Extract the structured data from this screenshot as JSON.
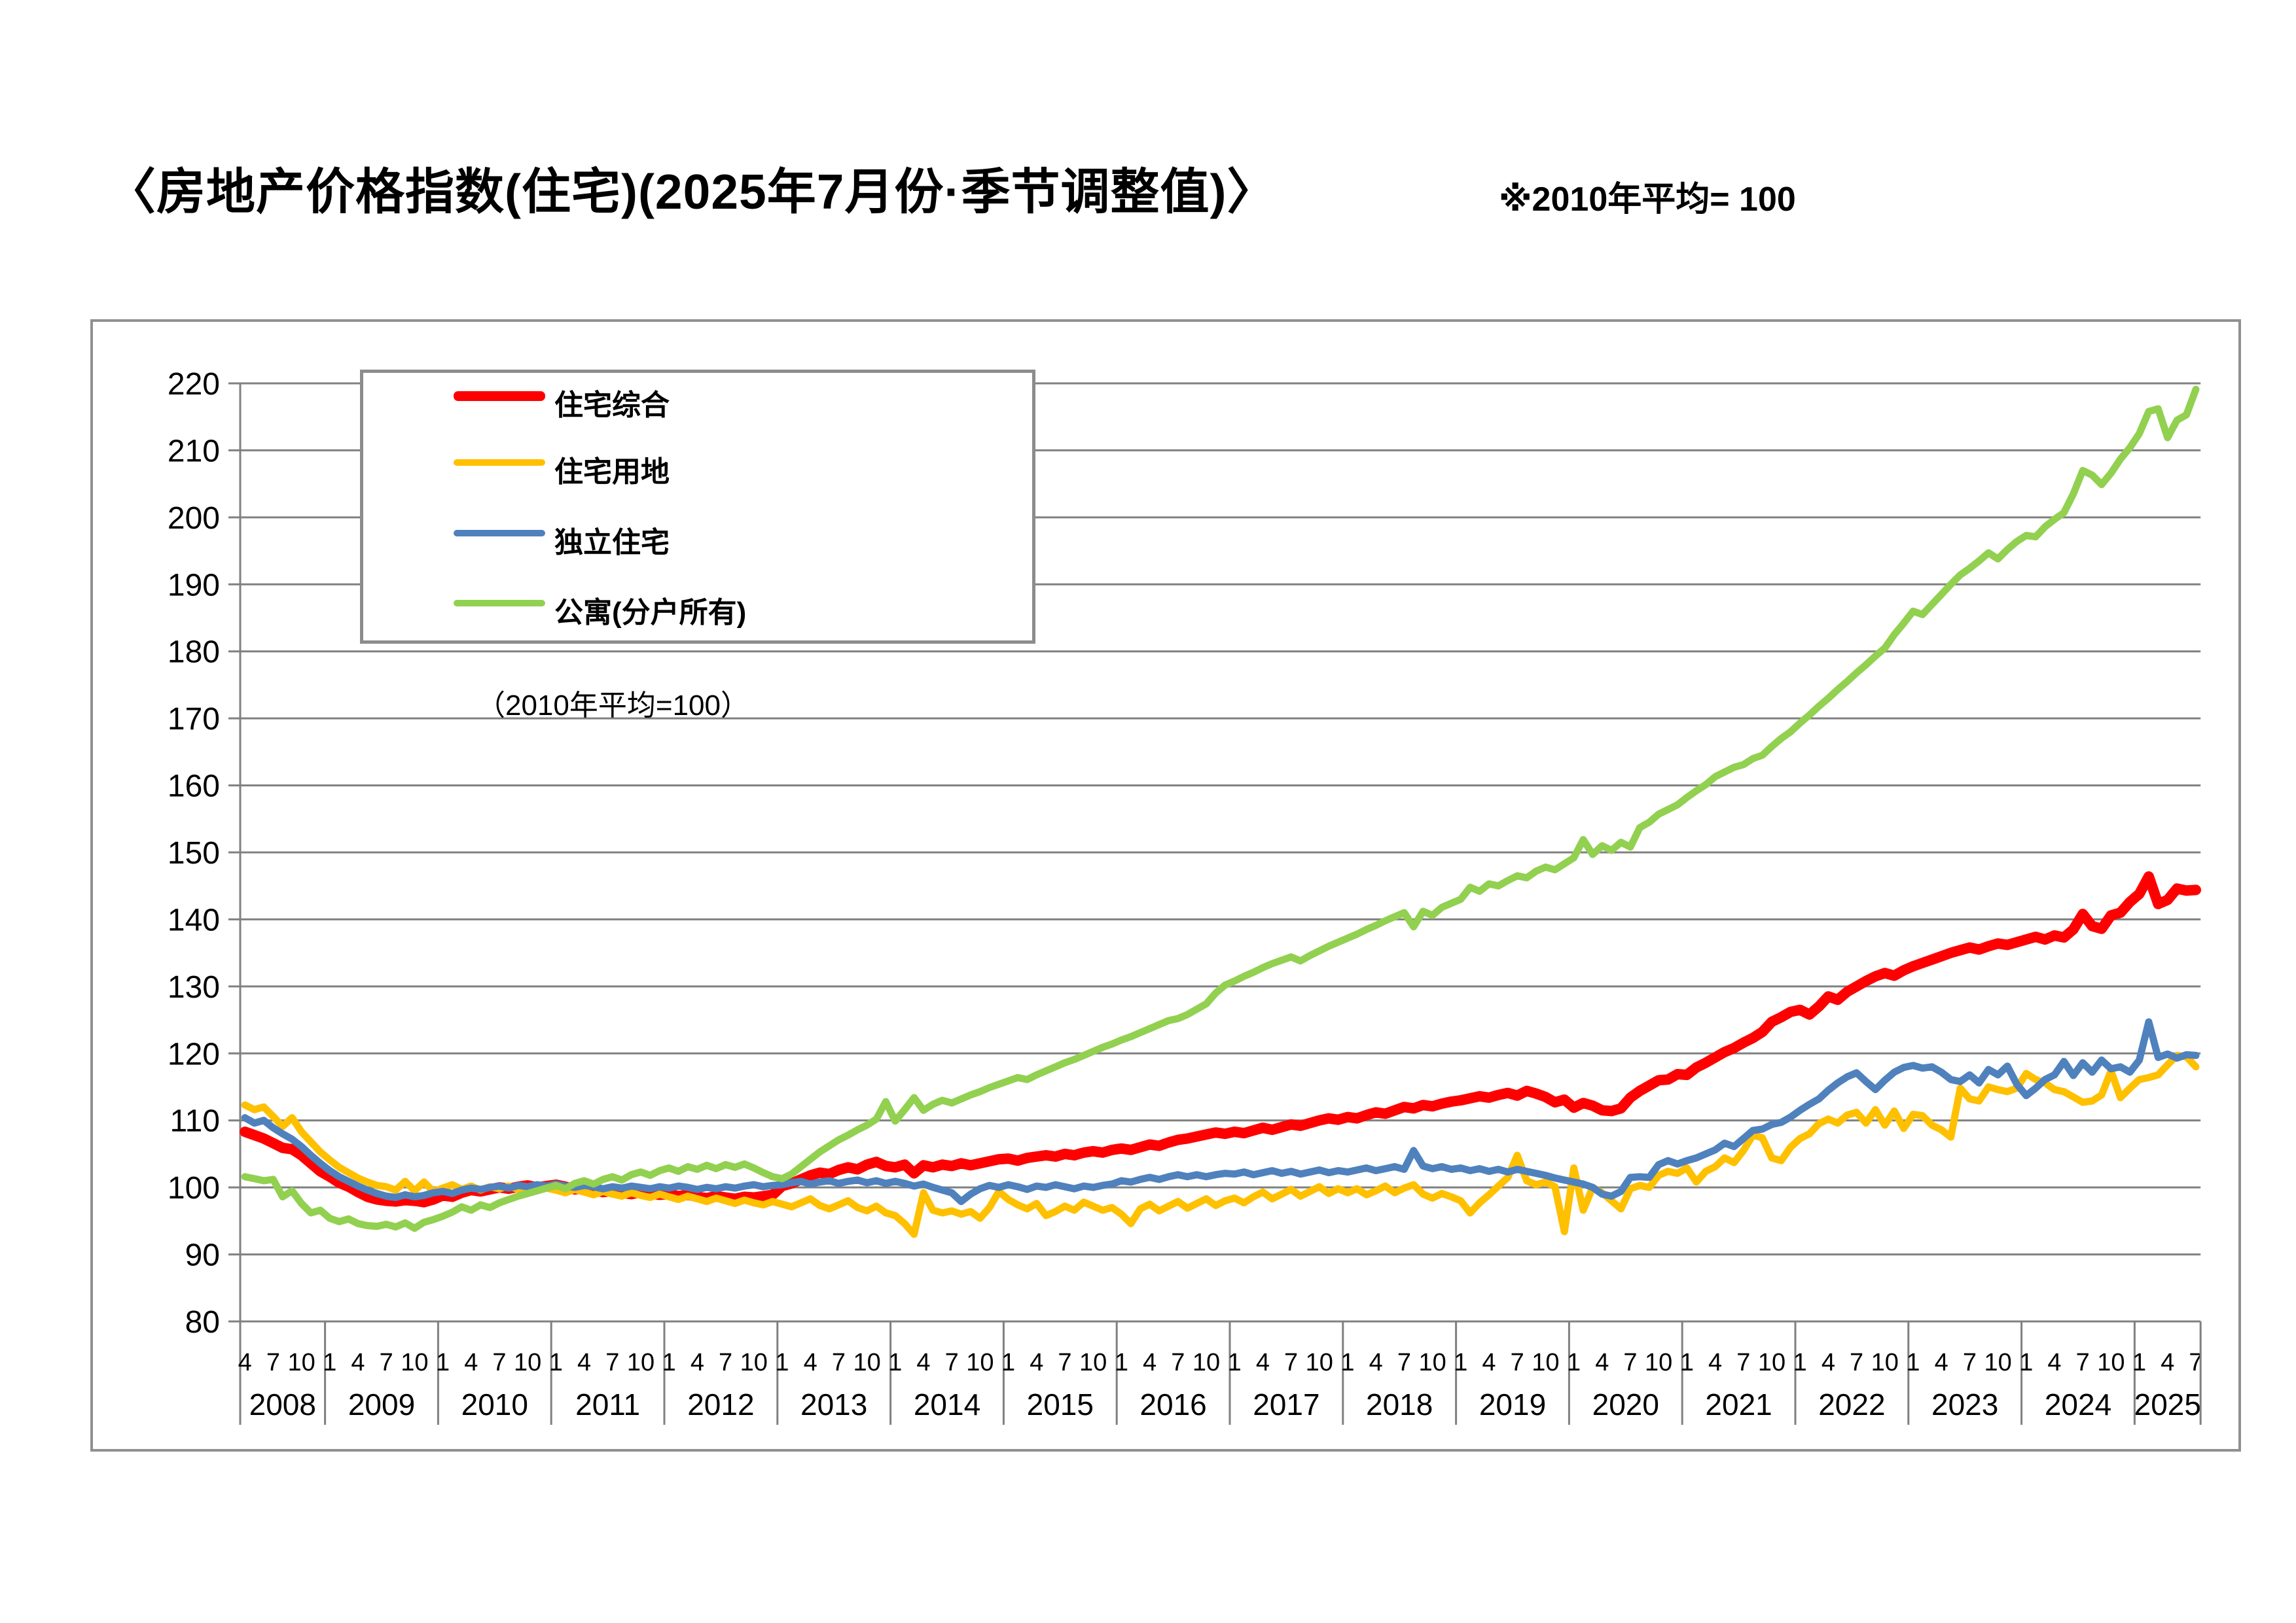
{
  "header": {
    "title": "〈房地产价格指数(住宅)(2025年7月份·季节调整值)〉",
    "note": "※2010年平均= 100"
  },
  "legend": {
    "note": "（2010年平均=100）"
  },
  "chart_data": {
    "type": "line",
    "title": "房地产价格指数(住宅)(2025年7月份·季节调整值)",
    "subtitle": "2010年平均=100",
    "x_frequency": "monthly",
    "x_start": "2008-04",
    "x_end": "2025-07",
    "ylim": [
      80,
      220
    ],
    "ytick_step": 10,
    "y_ticks": [
      80,
      90,
      100,
      110,
      120,
      130,
      140,
      150,
      160,
      170,
      180,
      190,
      200,
      210,
      220
    ],
    "grid": "horizontal",
    "legend_position": "top-left-box",
    "x_axis": {
      "years": [
        {
          "year": "2008",
          "month_ticks": [
            "4",
            "7",
            "10"
          ]
        },
        {
          "year": "2009",
          "month_ticks": [
            "1",
            "4",
            "7",
            "10"
          ]
        },
        {
          "year": "2010",
          "month_ticks": [
            "1",
            "4",
            "7",
            "10"
          ]
        },
        {
          "year": "2011",
          "month_ticks": [
            "1",
            "4",
            "7",
            "10"
          ]
        },
        {
          "year": "2012",
          "month_ticks": [
            "1",
            "4",
            "7",
            "10"
          ]
        },
        {
          "year": "2013",
          "month_ticks": [
            "1",
            "4",
            "7",
            "10"
          ]
        },
        {
          "year": "2014",
          "month_ticks": [
            "1",
            "4",
            "7",
            "10"
          ]
        },
        {
          "year": "2015",
          "month_ticks": [
            "1",
            "4",
            "7",
            "10"
          ]
        },
        {
          "year": "2016",
          "month_ticks": [
            "1",
            "4",
            "7",
            "10"
          ]
        },
        {
          "year": "2017",
          "month_ticks": [
            "1",
            "4",
            "7",
            "10"
          ]
        },
        {
          "year": "2018",
          "month_ticks": [
            "1",
            "4",
            "7",
            "10"
          ]
        },
        {
          "year": "2019",
          "month_ticks": [
            "1",
            "4",
            "7",
            "10"
          ]
        },
        {
          "year": "2020",
          "month_ticks": [
            "1",
            "4",
            "7",
            "10"
          ]
        },
        {
          "year": "2021",
          "month_ticks": [
            "1",
            "4",
            "7",
            "10"
          ]
        },
        {
          "year": "2022",
          "month_ticks": [
            "1",
            "4",
            "7",
            "10"
          ]
        },
        {
          "year": "2023",
          "month_ticks": [
            "1",
            "4",
            "7",
            "10"
          ]
        },
        {
          "year": "2024",
          "month_ticks": [
            "1",
            "4",
            "7",
            "10"
          ]
        },
        {
          "year": "2025",
          "month_ticks": [
            "1",
            "4",
            "7"
          ]
        }
      ]
    },
    "series": [
      {
        "name": "住宅综合",
        "color": "#FF0000",
        "line_width": 16,
        "swatch_height": 15,
        "values": [
          108.3,
          107.8,
          107.3,
          106.6,
          105.9,
          105.7,
          104.8,
          103.6,
          102.4,
          101.6,
          100.7,
          100.1,
          99.3,
          98.6,
          98.2,
          98.0,
          97.9,
          98.1,
          98.0,
          97.8,
          98.2,
          98.8,
          98.6,
          99.2,
          99.6,
          99.4,
          99.7,
          100.0,
          99.8,
          100.1,
          100.3,
          100.0,
          100.2,
          100.4,
          100.1,
          99.7,
          99.9,
          99.6,
          99.3,
          99.5,
          99.2,
          99.0,
          99.3,
          99.1,
          98.9,
          99.0,
          98.7,
          98.9,
          98.6,
          98.4,
          98.7,
          98.5,
          98.3,
          98.6,
          98.5,
          98.7,
          98.9,
          100.2,
          100.6,
          101.2,
          101.8,
          102.2,
          102.0,
          102.6,
          103.0,
          102.7,
          103.4,
          103.8,
          103.2,
          103.0,
          103.4,
          102.1,
          103.3,
          103.0,
          103.4,
          103.2,
          103.6,
          103.3,
          103.6,
          103.9,
          104.2,
          104.3,
          104.0,
          104.4,
          104.6,
          104.8,
          104.6,
          105.0,
          104.8,
          105.2,
          105.4,
          105.2,
          105.6,
          105.8,
          105.6,
          106.0,
          106.4,
          106.2,
          106.7,
          107.1,
          107.3,
          107.6,
          107.9,
          108.2,
          108.0,
          108.3,
          108.1,
          108.5,
          108.9,
          108.6,
          109.0,
          109.4,
          109.2,
          109.6,
          110.0,
          110.3,
          110.1,
          110.5,
          110.3,
          110.8,
          111.2,
          111.0,
          111.5,
          112.0,
          111.8,
          112.3,
          112.1,
          112.5,
          112.8,
          113.0,
          113.3,
          113.6,
          113.4,
          113.8,
          114.1,
          113.7,
          114.4,
          114.0,
          113.5,
          112.7,
          113.1,
          111.9,
          112.6,
          112.2,
          111.5,
          111.4,
          111.8,
          113.4,
          114.4,
          115.2,
          116.0,
          116.1,
          116.9,
          116.8,
          117.9,
          118.6,
          119.4,
          120.2,
          120.8,
          121.6,
          122.3,
          123.2,
          124.7,
          125.4,
          126.2,
          126.5,
          125.8,
          127.0,
          128.5,
          128.0,
          129.2,
          130.0,
          130.8,
          131.5,
          132.0,
          131.6,
          132.4,
          133.0,
          133.5,
          134.0,
          134.5,
          135.0,
          135.4,
          135.8,
          135.5,
          136.0,
          136.4,
          136.2,
          136.6,
          137.0,
          137.4,
          137.0,
          137.6,
          137.3,
          138.5,
          140.8,
          139.0,
          138.6,
          140.6,
          141.0,
          142.6,
          143.8,
          146.4,
          142.3,
          142.9,
          144.6,
          144.3,
          144.4
        ]
      },
      {
        "name": "住宅用地",
        "color": "#FFC000",
        "line_width": 11,
        "swatch_height": 10,
        "values": [
          112.3,
          111.6,
          112.0,
          110.6,
          109.1,
          110.4,
          108.3,
          106.8,
          105.3,
          104.1,
          103.0,
          102.2,
          101.4,
          100.8,
          100.3,
          100.1,
          99.6,
          100.9,
          99.5,
          100.8,
          99.4,
          99.9,
          100.4,
          99.7,
          100.2,
          99.6,
          100.1,
          99.8,
          100.2,
          99.7,
          100.0,
          99.5,
          99.9,
          99.6,
          99.2,
          99.7,
          99.3,
          98.9,
          99.4,
          99.0,
          98.7,
          99.2,
          98.8,
          98.5,
          99.0,
          98.6,
          98.2,
          98.7,
          98.3,
          97.9,
          98.4,
          98.0,
          97.6,
          98.1,
          97.7,
          97.4,
          97.9,
          97.5,
          97.1,
          97.7,
          98.3,
          97.3,
          96.8,
          97.4,
          98.0,
          97.0,
          96.5,
          97.2,
          96.2,
          95.8,
          94.6,
          93.0,
          99.2,
          96.6,
          96.2,
          96.5,
          96.0,
          96.4,
          95.4,
          97.0,
          99.4,
          98.2,
          97.4,
          96.8,
          97.6,
          95.8,
          96.4,
          97.2,
          96.6,
          97.8,
          97.2,
          96.6,
          97.0,
          96.0,
          94.6,
          96.8,
          97.5,
          96.5,
          97.2,
          97.9,
          96.9,
          97.6,
          98.3,
          97.3,
          98.0,
          98.4,
          97.7,
          98.6,
          99.3,
          98.3,
          99.0,
          99.7,
          98.7,
          99.4,
          100.1,
          99.1,
          99.8,
          99.2,
          99.8,
          98.9,
          99.5,
          100.2,
          99.2,
          99.9,
          100.4,
          99.0,
          98.4,
          99.1,
          98.6,
          98.0,
          96.2,
          97.7,
          98.9,
          100.2,
          101.5,
          104.8,
          101.0,
          100.4,
          100.8,
          100.1,
          93.4,
          102.9,
          96.6,
          100.0,
          99.2,
          98.0,
          96.8,
          99.8,
          100.3,
          100.0,
          101.8,
          102.4,
          102.1,
          102.9,
          100.8,
          102.4,
          103.1,
          104.4,
          103.7,
          105.5,
          107.8,
          107.4,
          104.4,
          104.0,
          106.0,
          107.3,
          108.0,
          109.5,
          110.2,
          109.6,
          110.8,
          111.2,
          109.6,
          111.6,
          109.3,
          111.4,
          108.8,
          110.9,
          110.7,
          109.3,
          108.6,
          107.5,
          114.8,
          113.2,
          112.9,
          115.0,
          114.6,
          114.3,
          114.8,
          117.0,
          116.1,
          115.6,
          114.6,
          114.3,
          113.5,
          112.7,
          112.9,
          113.8,
          117.4,
          113.4,
          114.8,
          116.1,
          116.4,
          116.8,
          118.3,
          119.7,
          119.5,
          118.0
        ]
      },
      {
        "name": "独立住宅",
        "color": "#4F81BD",
        "line_width": 11,
        "swatch_height": 10,
        "values": [
          110.4,
          109.6,
          110.0,
          108.9,
          108.0,
          107.2,
          106.1,
          104.8,
          103.6,
          102.5,
          101.6,
          100.9,
          100.2,
          99.6,
          99.1,
          98.7,
          98.5,
          98.9,
          98.6,
          98.8,
          99.2,
          99.4,
          99.1,
          99.6,
          99.9,
          99.7,
          100.0,
          100.2,
          99.9,
          100.3,
          100.1,
          100.4,
          100.2,
          100.5,
          100.2,
          100.0,
          100.3,
          100.1,
          99.8,
          100.1,
          99.9,
          100.2,
          100.0,
          99.8,
          100.1,
          99.9,
          100.2,
          100.0,
          99.7,
          100.0,
          99.8,
          100.1,
          99.9,
          100.2,
          100.4,
          100.1,
          100.3,
          100.4,
          100.7,
          100.9,
          100.5,
          100.8,
          101.0,
          100.6,
          100.9,
          101.1,
          100.7,
          101.0,
          100.6,
          100.9,
          100.6,
          100.2,
          100.5,
          100.0,
          99.6,
          99.2,
          97.9,
          99.0,
          99.8,
          100.3,
          100.0,
          100.4,
          100.1,
          99.7,
          100.2,
          100.0,
          100.4,
          100.1,
          99.8,
          100.2,
          100.0,
          100.3,
          100.5,
          101.0,
          100.8,
          101.2,
          101.5,
          101.2,
          101.6,
          101.9,
          101.6,
          101.9,
          101.6,
          101.9,
          102.1,
          102.0,
          102.3,
          101.9,
          102.2,
          102.5,
          102.1,
          102.4,
          102.0,
          102.3,
          102.6,
          102.2,
          102.5,
          102.3,
          102.6,
          102.9,
          102.5,
          102.8,
          103.1,
          102.7,
          105.5,
          103.2,
          102.8,
          103.1,
          102.7,
          102.9,
          102.5,
          102.8,
          102.4,
          102.7,
          102.3,
          102.7,
          102.4,
          102.1,
          101.8,
          101.4,
          101.1,
          100.8,
          100.5,
          100.0,
          99.0,
          98.7,
          99.4,
          101.5,
          101.6,
          101.5,
          103.4,
          104.0,
          103.5,
          104.0,
          104.4,
          105.0,
          105.6,
          106.6,
          106.1,
          107.3,
          108.5,
          108.7,
          109.4,
          109.7,
          110.5,
          111.5,
          112.4,
          113.2,
          114.5,
          115.6,
          116.5,
          117.1,
          115.8,
          114.6,
          116.0,
          117.2,
          117.9,
          118.2,
          117.8,
          118.0,
          117.2,
          116.1,
          115.8,
          116.8,
          115.6,
          117.6,
          116.8,
          118.1,
          115.4,
          113.7,
          114.8,
          116.1,
          116.8,
          118.8,
          116.7,
          118.6,
          117.2,
          119.0,
          117.7,
          118.0,
          117.2,
          119.0,
          124.7,
          119.4,
          119.9,
          119.3,
          119.8,
          119.7
        ]
      },
      {
        "name": "公寓(分户所有)",
        "color": "#92D050",
        "line_width": 11,
        "swatch_height": 10,
        "values": [
          101.6,
          101.3,
          101.0,
          101.2,
          98.6,
          99.5,
          97.6,
          96.2,
          96.6,
          95.4,
          94.9,
          95.3,
          94.6,
          94.3,
          94.2,
          94.5,
          94.1,
          94.7,
          93.9,
          94.8,
          95.2,
          95.7,
          96.3,
          97.1,
          96.6,
          97.4,
          97.0,
          97.7,
          98.2,
          98.7,
          99.1,
          99.5,
          99.9,
          100.3,
          99.8,
          100.6,
          101.0,
          100.5,
          101.2,
          101.6,
          101.1,
          101.9,
          102.3,
          101.8,
          102.5,
          102.9,
          102.4,
          103.1,
          102.7,
          103.3,
          102.8,
          103.4,
          103.0,
          103.5,
          102.9,
          102.2,
          101.6,
          101.3,
          102.0,
          103.1,
          104.2,
          105.3,
          106.2,
          107.1,
          107.8,
          108.6,
          109.3,
          110.2,
          112.8,
          109.9,
          111.6,
          113.4,
          111.5,
          112.4,
          113.0,
          112.6,
          113.2,
          113.8,
          114.3,
          114.9,
          115.4,
          115.9,
          116.4,
          116.1,
          116.8,
          117.4,
          118.0,
          118.6,
          119.1,
          119.7,
          120.3,
          120.9,
          121.4,
          122.0,
          122.5,
          123.1,
          123.7,
          124.3,
          124.9,
          125.2,
          125.8,
          126.6,
          127.4,
          129.0,
          130.2,
          130.8,
          131.5,
          132.1,
          132.8,
          133.4,
          133.9,
          134.4,
          133.8,
          134.6,
          135.3,
          136.0,
          136.6,
          137.2,
          137.8,
          138.5,
          139.1,
          139.8,
          140.4,
          141.0,
          138.9,
          141.2,
          140.6,
          141.8,
          142.4,
          143.0,
          144.8,
          144.2,
          145.3,
          145.0,
          145.8,
          146.5,
          146.2,
          147.2,
          147.8,
          147.4,
          148.3,
          149.2,
          151.9,
          149.7,
          151.0,
          150.3,
          151.5,
          150.8,
          153.7,
          154.5,
          155.7,
          156.4,
          157.1,
          158.2,
          159.2,
          160.1,
          161.3,
          162.0,
          162.7,
          163.1,
          164.0,
          164.5,
          165.8,
          167.0,
          168.0,
          169.3,
          170.5,
          171.8,
          173.0,
          174.3,
          175.5,
          176.8,
          178.0,
          179.3,
          180.5,
          182.5,
          184.2,
          186.0,
          185.5,
          187.0,
          188.5,
          190.0,
          191.4,
          192.4,
          193.5,
          194.7,
          193.8,
          195.2,
          196.4,
          197.3,
          197.1,
          198.6,
          199.7,
          200.7,
          203.5,
          207.0,
          206.3,
          204.9,
          206.6,
          208.7,
          210.4,
          212.5,
          215.8,
          216.2,
          211.9,
          214.5,
          215.3,
          219.1
        ]
      }
    ]
  }
}
